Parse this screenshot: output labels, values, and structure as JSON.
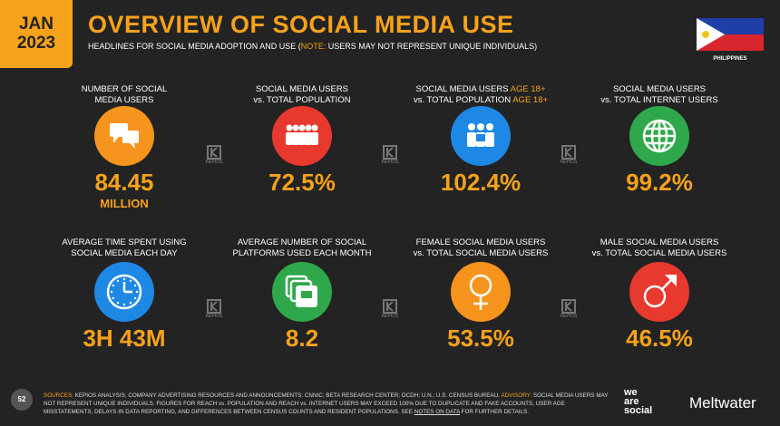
{
  "header": {
    "date_lines": [
      "JAN",
      "2023"
    ],
    "title": "OVERVIEW OF SOCIAL MEDIA USE",
    "subtitle": [
      {
        "text": "HEADLINES FOR SOCIAL MEDIA ADOPTION AND USE ("
      },
      {
        "text": "NOTE:",
        "accent": true
      },
      {
        "text": " USERS MAY NOT REPRESENT UNIQUE INDIVIDUALS)"
      }
    ],
    "country": "PHILIPPINES"
  },
  "watermark": "KEPIOS",
  "stats": [
    {
      "label": [
        [
          {
            "text": "NUMBER OF SOCIAL"
          }
        ],
        [
          {
            "text": "MEDIA USERS"
          }
        ]
      ],
      "value": "84.45",
      "unit": "MILLION",
      "color": "#f7941d"
    },
    {
      "label": [
        [
          {
            "text": "SOCIAL MEDIA USERS"
          }
        ],
        [
          {
            "text": "vs. TOTAL POPULATION"
          }
        ]
      ],
      "value": "72.5%",
      "color": "#e8392e"
    },
    {
      "label": [
        [
          {
            "text": "SOCIAL MEDIA USERS "
          },
          {
            "text": "AGE 18+",
            "accent": true
          }
        ],
        [
          {
            "text": "vs. TOTAL POPULATION "
          },
          {
            "text": "AGE 18+",
            "accent": true
          }
        ]
      ],
      "value": "102.4%",
      "color": "#1e88e5"
    },
    {
      "label": [
        [
          {
            "text": "SOCIAL MEDIA USERS"
          }
        ],
        [
          {
            "text": "vs. TOTAL INTERNET USERS"
          }
        ]
      ],
      "value": "99.2%",
      "color": "#2ea84a"
    },
    {
      "label": [
        [
          {
            "text": "AVERAGE TIME SPENT USING"
          }
        ],
        [
          {
            "text": "SOCIAL MEDIA EACH DAY"
          }
        ]
      ],
      "value": "3H 43M",
      "color": "#1e88e5"
    },
    {
      "label": [
        [
          {
            "text": "AVERAGE NUMBER OF SOCIAL"
          }
        ],
        [
          {
            "text": "PLATFORMS USED EACH MONTH"
          }
        ]
      ],
      "value": "8.2",
      "color": "#2ea84a"
    },
    {
      "label": [
        [
          {
            "text": "FEMALE SOCIAL MEDIA USERS"
          }
        ],
        [
          {
            "text": "vs. TOTAL SOCIAL MEDIA USERS"
          }
        ]
      ],
      "value": "53.5%",
      "color": "#f7941d"
    },
    {
      "label": [
        [
          {
            "text": "MALE SOCIAL MEDIA USERS"
          }
        ],
        [
          {
            "text": "vs. TOTAL SOCIAL MEDIA USERS"
          }
        ]
      ],
      "value": "46.5%",
      "color": "#e8392e"
    }
  ],
  "footer": {
    "page": "52",
    "notes": [
      {
        "text": "SOURCES:",
        "accent": true
      },
      {
        "text": " KEPIOS ANALYSIS; COMPANY ADVERTISING RESOURCES AND ANNOUNCEMENTS; CNNIC; BETA RESEARCH CENTER; OCDH; U.N.; U.S. CENSUS BUREAU. "
      },
      {
        "text": "ADVISORY:",
        "accent": true
      },
      {
        "text": " SOCIAL MEDIA USERS MAY NOT REPRESENT UNIQUE INDIVIDUALS. FIGURES FOR REACH vs. POPULATION AND REACH vs. INTERNET USERS MAY EXCEED 100% DUE TO DUPLICATE AND FAKE ACCOUNTS, USER AGE MISSTATEMENTS, DELAYS IN DATA REPORTING, AND DIFFERENCES BETWEEN CENSUS COUNTS AND RESIDENT POPULATIONS. SEE "
      },
      {
        "text": "NOTES ON DATA",
        "link": true
      },
      {
        "text": " FOR FURTHER DETAILS."
      }
    ],
    "brand_lines": [
      "we",
      "are",
      "social"
    ],
    "partner": "Meltwater"
  }
}
